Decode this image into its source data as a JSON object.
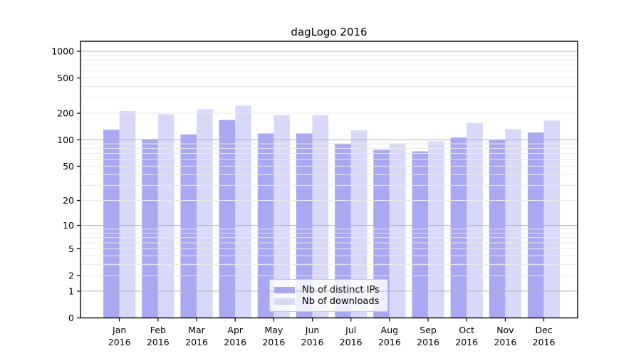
{
  "chart_data": {
    "type": "bar",
    "title": "dagLogo 2016",
    "categories": [
      "Jan 2016",
      "Feb 2016",
      "Mar 2016",
      "Apr 2016",
      "May 2016",
      "Jun 2016",
      "Jul 2016",
      "Aug 2016",
      "Sep 2016",
      "Oct 2016",
      "Nov 2016",
      "Dec 2016"
    ],
    "series": [
      {
        "name": "Nb of distinct IPs",
        "color": "#a8a8f3",
        "values": [
          130,
          102,
          115,
          168,
          118,
          118,
          91,
          77,
          74,
          106,
          100,
          121
        ]
      },
      {
        "name": "Nb of downloads",
        "color": "#d8d8f8",
        "values": [
          212,
          195,
          222,
          243,
          190,
          190,
          128,
          90,
          96,
          155,
          132,
          165
        ]
      }
    ],
    "yscale": "log10(value+1)",
    "yticks": [
      0,
      1,
      2,
      5,
      10,
      20,
      50,
      100,
      200,
      500,
      1000
    ],
    "ylim": [
      0,
      1300
    ],
    "grid": "on",
    "legend_position": "bottom-center"
  },
  "colors": {
    "background": "#ffffff",
    "axis": "#000000",
    "grid_major": "#b3b3b3",
    "grid_minor": "#eaeaea",
    "tick_text": "#000000"
  }
}
